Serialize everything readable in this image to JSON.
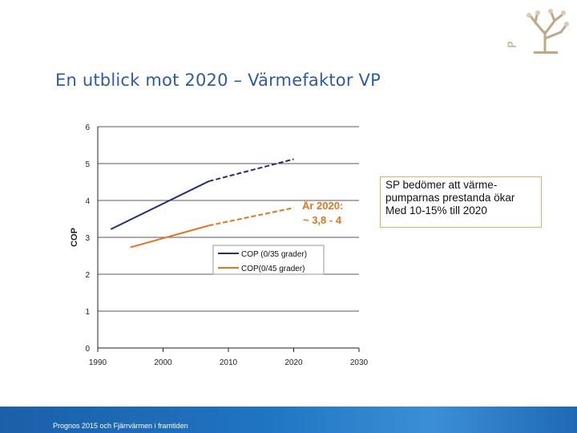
{
  "slide": {
    "title": "En utblick mot 2020 – Värmefaktor VP",
    "callout": "SP bedömer att värme-pumparnas prestanda ökar Med 10-15% till 2020",
    "footer": "Prognos 2015 och Fjärrvärmen i framtiden"
  },
  "logo": {
    "icon": "tree-logo-icon",
    "text": "P"
  },
  "chart_data": {
    "type": "line",
    "xlabel": "",
    "ylabel": "COP",
    "xlim": [
      1990,
      2030
    ],
    "ylim": [
      0,
      6
    ],
    "xticks": [
      1990,
      2000,
      2010,
      2020,
      2030
    ],
    "yticks": [
      0,
      1,
      2,
      3,
      4,
      5,
      6
    ],
    "grid": "horizontal",
    "legend_position": "center-right",
    "annotation": {
      "line1": "År 2020:",
      "line2": "~ 3,8 - 4",
      "color": "#e6731f"
    },
    "series": [
      {
        "name": "COP (0/35 grader)",
        "color": "#1f2f7a",
        "solid": {
          "x": [
            1992,
            2007
          ],
          "y": [
            3.22,
            4.52
          ]
        },
        "dashed": {
          "x": [
            2007,
            2020
          ],
          "y": [
            4.52,
            5.12
          ]
        }
      },
      {
        "name": "COP(0/45 grader)",
        "color": "#e6731f",
        "solid": {
          "x": [
            1995,
            2007
          ],
          "y": [
            2.73,
            3.32
          ]
        },
        "dashed": {
          "x": [
            2007,
            2020
          ],
          "y": [
            3.32,
            3.8
          ]
        }
      }
    ]
  }
}
